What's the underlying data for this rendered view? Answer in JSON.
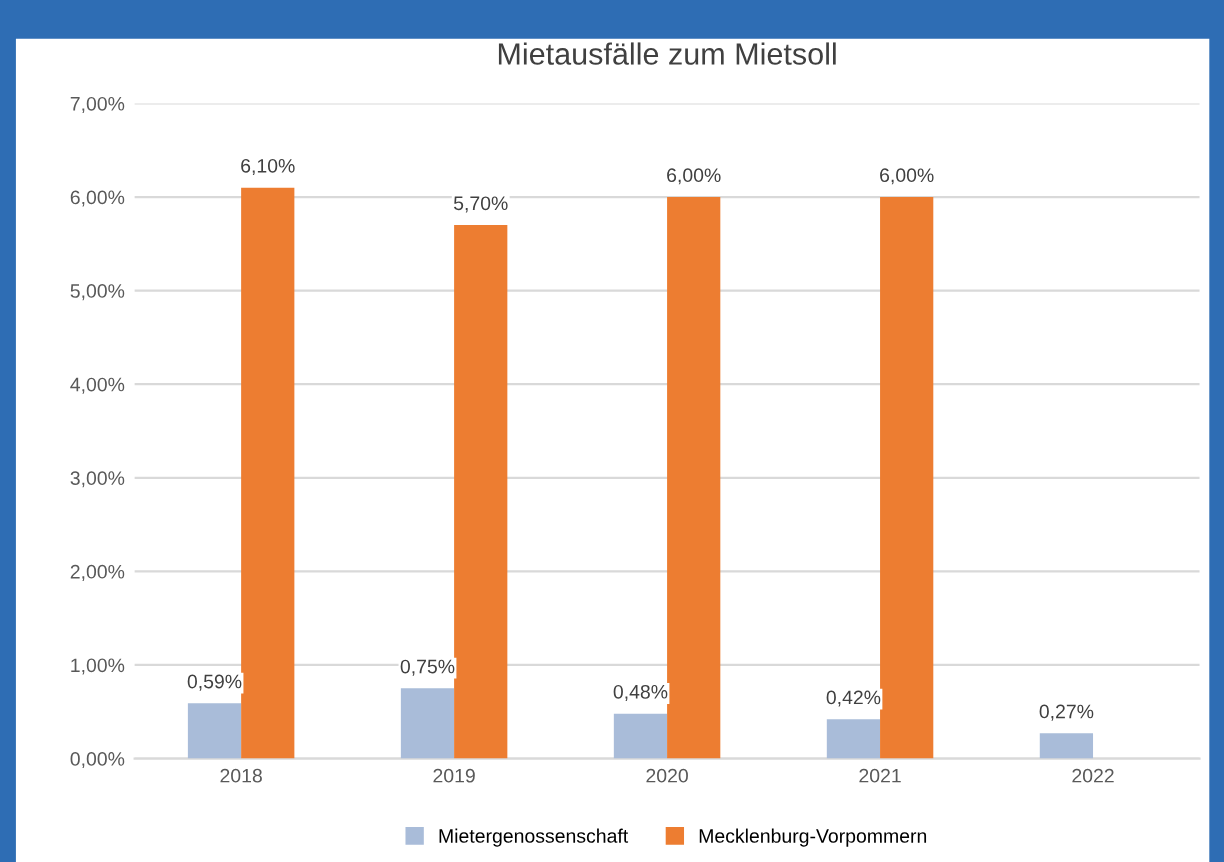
{
  "chart_data": {
    "type": "bar",
    "title": "Mietausfälle zum Mietsoll",
    "categories": [
      "2018",
      "2019",
      "2020",
      "2021",
      "2022"
    ],
    "series": [
      {
        "name": "Mietergenossenschaft",
        "color": "#a9bcd9",
        "values": [
          0.59,
          0.75,
          0.48,
          0.42,
          0.27
        ],
        "value_labels": [
          "0,59%",
          "0,75%",
          "0,48%",
          "0,42%",
          "0,27%"
        ]
      },
      {
        "name": "Mecklenburg-Vorpommern",
        "color": "#ed7d31",
        "values": [
          6.1,
          5.7,
          6.0,
          6.0,
          null
        ],
        "value_labels": [
          "6,10%",
          "5,70%",
          "6,00%",
          "6,00%",
          null
        ]
      }
    ],
    "ylim": [
      0,
      7
    ],
    "yticks": [
      {
        "value": 0,
        "label": "0,00%"
      },
      {
        "value": 1,
        "label": "1,00%"
      },
      {
        "value": 2,
        "label": "2,00%"
      },
      {
        "value": 3,
        "label": "3,00%"
      },
      {
        "value": 4,
        "label": "4,00%"
      },
      {
        "value": 5,
        "label": "5,00%"
      },
      {
        "value": 6,
        "label": "6,00%"
      },
      {
        "value": 7,
        "label": "7,00%"
      }
    ],
    "grid": "y",
    "legend": "bottom"
  }
}
